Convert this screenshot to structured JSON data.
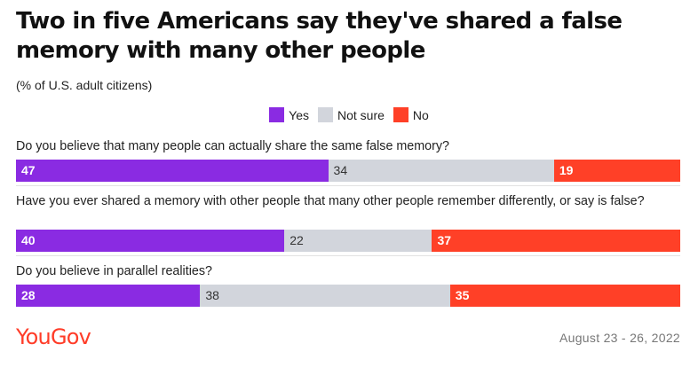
{
  "title": "Two in five Americans say they've shared a false memory with many other people",
  "subtitle": "(% of U.S. adult citizens)",
  "colors": {
    "yes": "#8a2be2",
    "not_sure": "#d2d5dc",
    "no": "#ff4027",
    "logo": "#ff3c28"
  },
  "legend": [
    {
      "label": "Yes",
      "color": "#8a2be2"
    },
    {
      "label": "Not sure",
      "color": "#d2d5dc"
    },
    {
      "label": "No",
      "color": "#ff4027"
    }
  ],
  "chart_data": {
    "type": "bar",
    "orientation": "horizontal",
    "stacked": true,
    "categories": [
      "Do you believe that many people can actually share the same false memory?",
      "Have you ever shared a memory with other people that many other people remember differently, or say is false?",
      "Do you believe in parallel realities?"
    ],
    "series": [
      {
        "name": "Yes",
        "values": [
          47,
          40,
          28
        ]
      },
      {
        "name": "Not sure",
        "values": [
          34,
          22,
          38
        ]
      },
      {
        "name": "No",
        "values": [
          19,
          37,
          35
        ]
      }
    ],
    "legend_position": "top-center",
    "grid": false
  },
  "footer": {
    "logo_text": "YouGov",
    "date": "August 23 - 26, 2022"
  }
}
